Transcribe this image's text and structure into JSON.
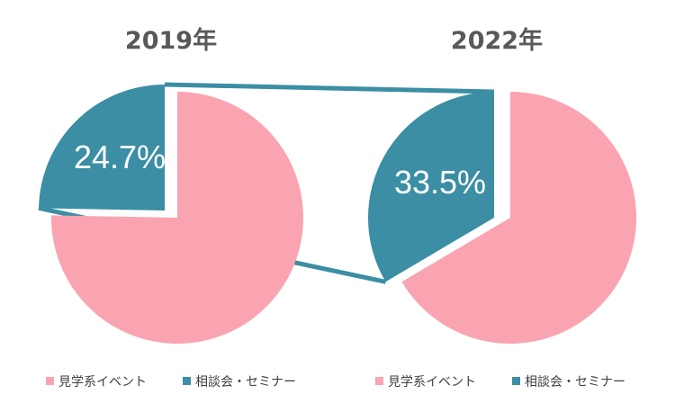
{
  "colors": {
    "primary": "#f9a4b0",
    "accent": "#3b8ea4"
  },
  "chart_data": [
    {
      "type": "pie",
      "title": "2019年",
      "categories": [
        "見学系イベント",
        "相談会・セミナー"
      ],
      "values": [
        75.3,
        24.7
      ],
      "data_labels": [
        "",
        "24.7%"
      ],
      "legend_position": "bottom"
    },
    {
      "type": "pie",
      "title": "2022年",
      "categories": [
        "見学系イベント",
        "相談会・セミナー"
      ],
      "values": [
        66.5,
        33.5
      ],
      "data_labels": [
        "",
        "33.5%"
      ],
      "legend_position": "bottom"
    }
  ]
}
